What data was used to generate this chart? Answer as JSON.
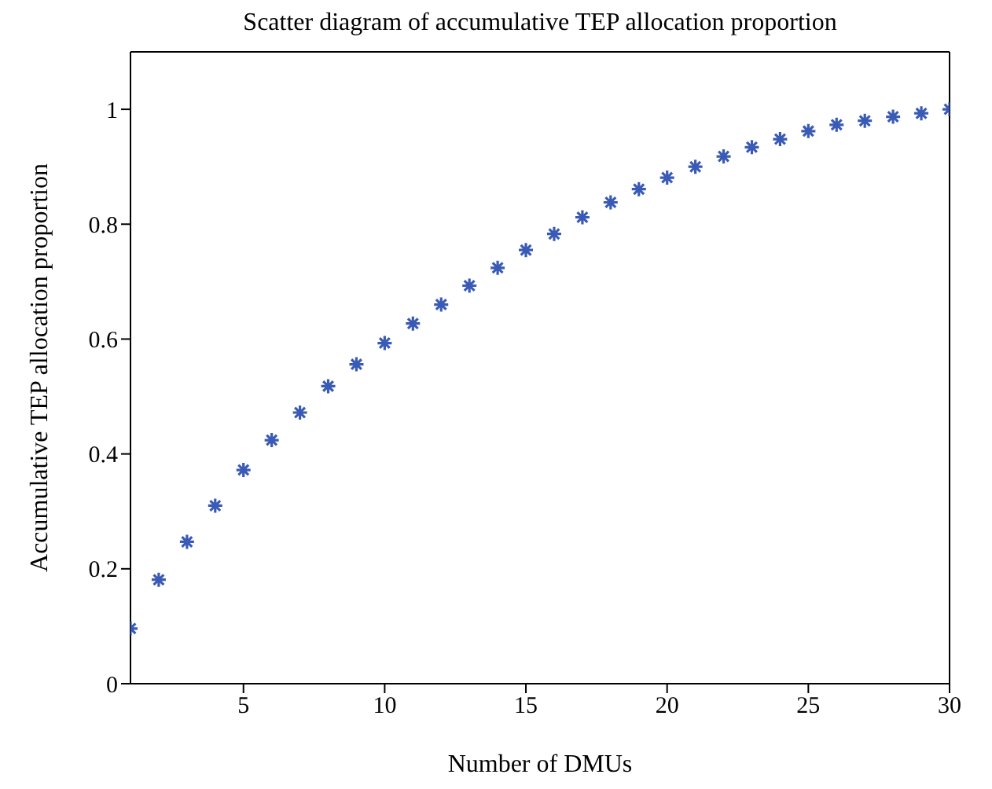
{
  "chart_data": {
    "type": "scatter",
    "title": "Scatter diagram of accumulative TEP allocation proportion",
    "xlabel": "Number of DMUs",
    "ylabel": "Accumulative TEP allocation proportion",
    "x": [
      1,
      2,
      3,
      4,
      5,
      6,
      7,
      8,
      9,
      10,
      11,
      12,
      13,
      14,
      15,
      16,
      17,
      18,
      19,
      20,
      21,
      22,
      23,
      24,
      25,
      26,
      27,
      28,
      29,
      30
    ],
    "series": [
      {
        "color": "#3a5bb5",
        "values": [
          0.096,
          0.181,
          0.247,
          0.31,
          0.372,
          0.424,
          0.472,
          0.518,
          0.556,
          0.593,
          0.627,
          0.66,
          0.693,
          0.724,
          0.755,
          0.783,
          0.812,
          0.838,
          0.861,
          0.881,
          0.9,
          0.918,
          0.934,
          0.948,
          0.962,
          0.973,
          0.98,
          0.987,
          0.993,
          1.0
        ]
      }
    ],
    "xlim": [
      1,
      30
    ],
    "ylim": [
      0,
      1.1
    ],
    "xticks": [
      5,
      10,
      15,
      20,
      25,
      30
    ],
    "yticks": [
      0,
      0.2,
      0.4,
      0.6,
      0.8,
      1
    ],
    "marker": "cross"
  }
}
